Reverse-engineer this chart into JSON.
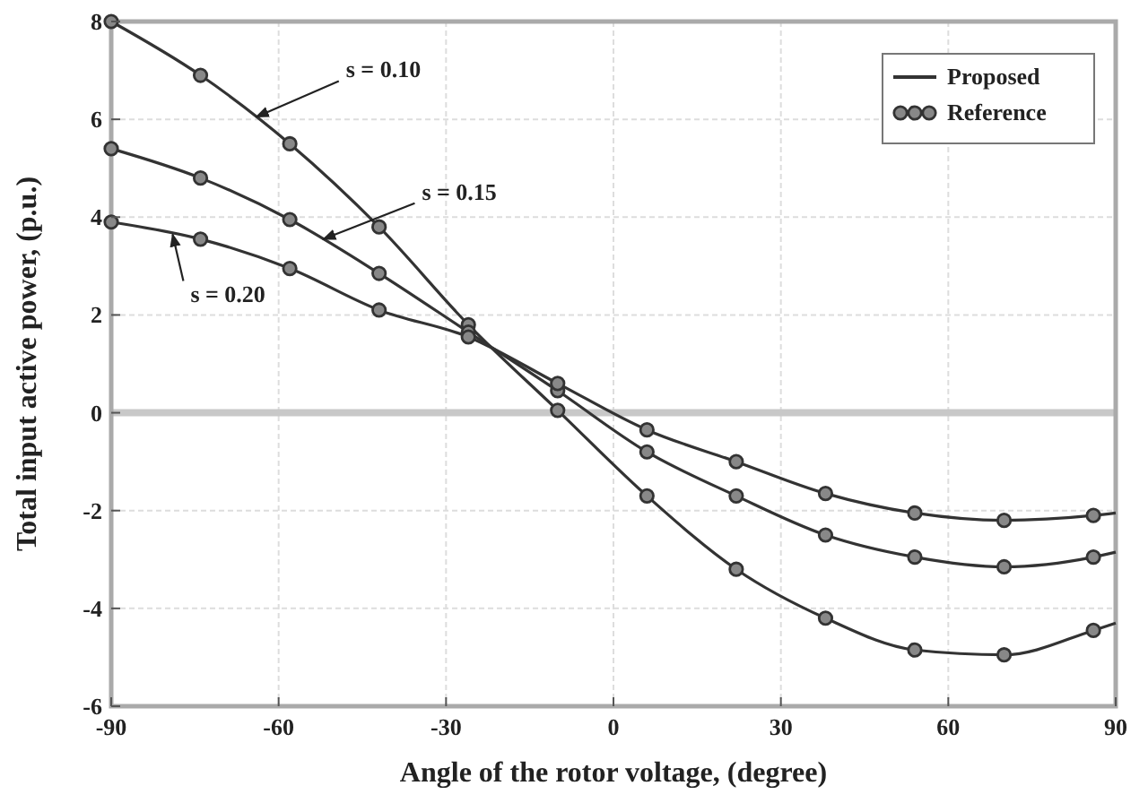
{
  "chart_data": {
    "type": "line",
    "xlabel": "Angle of the rotor voltage, (degree)",
    "ylabel": "Total input active power, (p.u.)",
    "xlim": [
      -90,
      90
    ],
    "xticks": [
      -90,
      -60,
      -30,
      0,
      30,
      60,
      90
    ],
    "ylim": [
      -6,
      8
    ],
    "yticks": [
      -6,
      -4,
      -2,
      0,
      2,
      4,
      6,
      8
    ],
    "grid": true,
    "legend": "top right",
    "ref_lines": [
      {
        "axis": "y",
        "value": 0,
        "color": "#c8c8c8"
      }
    ],
    "series": [
      {
        "name": "Proposed",
        "line_style": "solid",
        "color": "#333333",
        "x": [
          -90,
          -74,
          -58,
          -42,
          -26,
          -10,
          6,
          22,
          38,
          54,
          70,
          86,
          90
        ],
        "values": [
          8,
          6.9,
          5.5,
          3.8,
          1.8,
          0.05,
          -1.7,
          -3.2,
          -4.2,
          -4.85,
          -4.95,
          -4.45,
          -4.3
        ]
      },
      {
        "line_style": "solid",
        "color": "#333333",
        "x": [
          -90,
          -74,
          -58,
          -42,
          -26,
          -10,
          6,
          22,
          38,
          54,
          70,
          86,
          90
        ],
        "values": [
          5.4,
          4.8,
          3.95,
          2.85,
          1.65,
          0.45,
          -0.8,
          -1.7,
          -2.5,
          -2.95,
          -3.15,
          -2.95,
          -2.85
        ]
      },
      {
        "line_style": "solid",
        "color": "#333333",
        "x": [
          -90,
          -74,
          -58,
          -42,
          -26,
          -10,
          6,
          22,
          38,
          54,
          70,
          86,
          90
        ],
        "values": [
          3.9,
          3.55,
          2.95,
          2.1,
          1.55,
          0.6,
          -0.35,
          -1,
          -1.65,
          -2.05,
          -2.2,
          -2.1,
          -2.05
        ]
      },
      {
        "name": "Reference",
        "type": "scatter",
        "marker": "circle",
        "color": "#333333",
        "x": [
          -90,
          -74,
          -58,
          -42,
          -26,
          -10,
          6,
          22,
          38,
          54,
          70,
          86
        ],
        "values": [
          8,
          6.9,
          5.5,
          3.8,
          1.8,
          0.05,
          -1.7,
          -3.2,
          -4.2,
          -4.85,
          -4.95,
          -4.45
        ]
      },
      {
        "type": "scatter",
        "marker": "circle",
        "color": "#333333",
        "x": [
          -90,
          -74,
          -58,
          -42,
          -26,
          -10,
          6,
          22,
          38,
          54,
          70,
          86
        ],
        "values": [
          5.4,
          4.8,
          3.95,
          2.85,
          1.65,
          0.45,
          -0.8,
          -1.7,
          -2.5,
          -2.95,
          -3.15,
          -2.95
        ]
      },
      {
        "type": "scatter",
        "marker": "circle",
        "color": "#333333",
        "x": [
          -90,
          -74,
          -58,
          -42,
          -26,
          -10,
          6,
          22,
          38,
          54,
          70,
          86
        ],
        "values": [
          3.9,
          3.55,
          2.95,
          2.1,
          1.55,
          0.6,
          -0.35,
          -1,
          -1.65,
          -2.05,
          -2.2,
          -2.1
        ]
      }
    ],
    "annotations": [
      {
        "text": "s = 0.10",
        "x": -64,
        "y": 6.05
      },
      {
        "text": "s = 0.15",
        "x": -52,
        "y": 3.55
      },
      {
        "text": "s = 0.20",
        "x": -79,
        "y": 3.65
      }
    ]
  }
}
